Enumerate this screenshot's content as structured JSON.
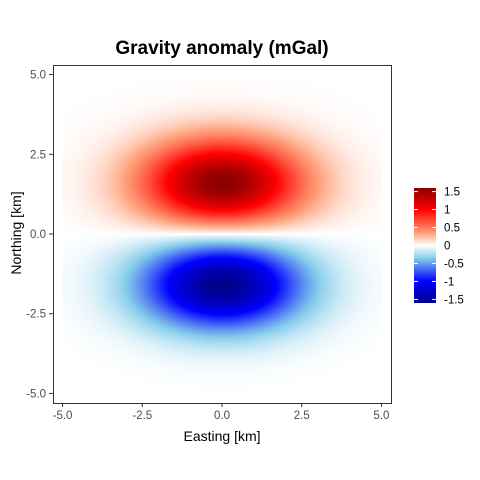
{
  "chart_data": {
    "type": "heatmap",
    "title": "Gravity anomaly (mGal)",
    "xlabel": "Easting [km]",
    "ylabel": "Northing [km]",
    "xlim": [
      -5.3,
      5.3
    ],
    "ylim": [
      -5.3,
      5.3
    ],
    "x_ticks": [
      -5.0,
      -2.5,
      0.0,
      2.5,
      5.0
    ],
    "x_tick_labels": [
      "-5.0",
      "-2.5",
      "0.0",
      "2.5",
      "5.0"
    ],
    "y_ticks": [
      -5.0,
      -2.5,
      0.0,
      2.5,
      5.0
    ],
    "y_tick_labels": [
      "-5.0",
      "-2.5",
      "0.0",
      "2.5",
      "5.0"
    ],
    "grid": false,
    "data_extent": {
      "x": [
        -5.0,
        5.0
      ],
      "y": [
        -5.0,
        5.0
      ]
    },
    "field": {
      "description_model": "dipole-like anomaly: positive lobe north, negative lobe south",
      "positive_peak": {
        "x": 0.0,
        "y": 1.6,
        "value": 1.6
      },
      "negative_peak": {
        "x": 0.0,
        "y": -1.6,
        "value": -1.6
      },
      "zero_line_y": 0.0
    },
    "legend": {
      "position": "right",
      "range": [
        -1.6,
        1.6
      ],
      "ticks": [
        1.5,
        1,
        0.5,
        0,
        -0.5,
        -1,
        -1.5
      ],
      "tick_labels": [
        "1.5",
        "1",
        "0.5",
        "0",
        "-0.5",
        "-1",
        "-1.5"
      ],
      "colors": [
        {
          "value": -1.6,
          "color": "#00008b"
        },
        {
          "value": -1.0,
          "color": "#0000ff"
        },
        {
          "value": -0.35,
          "color": "#87ceeb"
        },
        {
          "value": 0.0,
          "color": "#ffffff"
        },
        {
          "value": 0.35,
          "color": "#ffa07a"
        },
        {
          "value": 1.0,
          "color": "#ff0000"
        },
        {
          "value": 1.6,
          "color": "#8b0000"
        }
      ]
    }
  }
}
